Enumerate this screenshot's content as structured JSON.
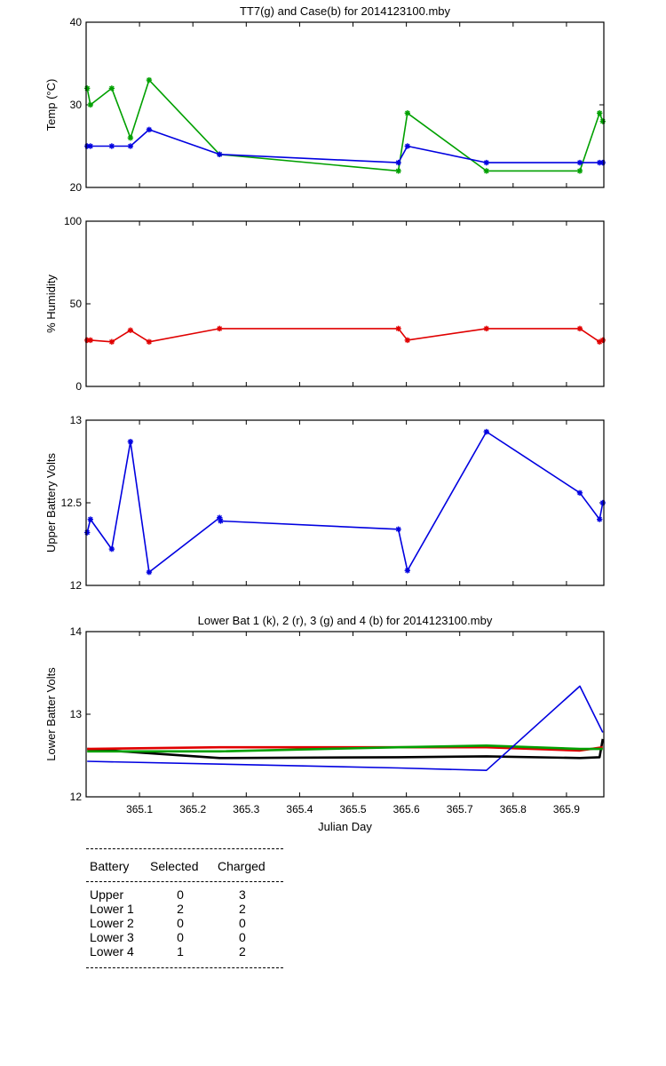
{
  "chart_data": [
    {
      "type": "line",
      "title": "TT7(g) and Case(b) for 2014123100.mby",
      "xlabel": "",
      "ylabel": "Temp  (°C)",
      "xlim": [
        365.0,
        365.97
      ],
      "ylim": [
        20,
        40
      ],
      "yticks": [
        "20",
        "30",
        "40"
      ],
      "xticks": [],
      "grid": false,
      "series": [
        {
          "color": "#00a000",
          "marker": "*",
          "x": [
            365.002,
            365.008,
            365.048,
            365.083,
            365.118,
            365.25,
            365.585,
            365.602,
            365.75,
            365.925,
            365.962,
            365.968
          ],
          "y": [
            32,
            30,
            32,
            26,
            33,
            24,
            22,
            29,
            22,
            22,
            29,
            28
          ]
        },
        {
          "color": "#0000e0",
          "marker": "*",
          "x": [
            365.002,
            365.008,
            365.048,
            365.083,
            365.118,
            365.25,
            365.585,
            365.602,
            365.75,
            365.925,
            365.962,
            365.968
          ],
          "y": [
            25,
            25,
            25,
            25,
            27,
            24,
            23,
            25,
            23,
            23,
            23,
            23
          ]
        }
      ]
    },
    {
      "type": "line",
      "title": "",
      "xlabel": "",
      "ylabel": "% Humidity",
      "xlim": [
        365.0,
        365.97
      ],
      "ylim": [
        0,
        100
      ],
      "yticks": [
        "0",
        "50",
        "100"
      ],
      "xticks": [],
      "grid": false,
      "series": [
        {
          "color": "#e00000",
          "marker": "*",
          "x": [
            365.002,
            365.008,
            365.048,
            365.083,
            365.118,
            365.25,
            365.585,
            365.602,
            365.75,
            365.925,
            365.962,
            365.968
          ],
          "y": [
            28,
            28,
            27,
            34,
            27,
            35,
            35,
            28,
            35,
            35,
            27,
            28
          ]
        }
      ]
    },
    {
      "type": "line",
      "title": "",
      "xlabel": "",
      "ylabel": "Upper Battery Volts",
      "xlim": [
        365.0,
        365.97
      ],
      "ylim": [
        12,
        13
      ],
      "yticks": [
        "12",
        "12.5",
        "13"
      ],
      "xticks": [],
      "grid": false,
      "series": [
        {
          "color": "#0000e0",
          "marker": "*",
          "x": [
            365.002,
            365.008,
            365.048,
            365.083,
            365.118,
            365.25,
            365.252,
            365.585,
            365.602,
            365.75,
            365.925,
            365.962,
            365.968
          ],
          "y": [
            12.32,
            12.4,
            12.22,
            12.87,
            12.08,
            12.41,
            12.39,
            12.34,
            12.09,
            12.93,
            12.56,
            12.4,
            12.5
          ]
        }
      ]
    },
    {
      "type": "line",
      "title": "Lower Bat 1 (k), 2 (r), 3 (g) and 4 (b) for 2014123100.mby",
      "xlabel": "Julian Day",
      "ylabel": "Lower Batter Volts",
      "xlim": [
        365.0,
        365.97
      ],
      "ylim": [
        12,
        14
      ],
      "yticks": [
        "12",
        "13",
        "14"
      ],
      "xticks": [
        "365.1",
        "365.2",
        "365.3",
        "365.4",
        "365.5",
        "365.6",
        "365.7",
        "365.8",
        "365.9"
      ],
      "grid": false,
      "series": [
        {
          "color": "#000000",
          "marker": "",
          "x": [
            365.002,
            365.25,
            365.585,
            365.75,
            365.925,
            365.962,
            365.968
          ],
          "y": [
            12.58,
            12.47,
            12.48,
            12.49,
            12.47,
            12.48,
            12.7
          ]
        },
        {
          "color": "#e00000",
          "marker": "",
          "x": [
            365.002,
            365.25,
            365.585,
            365.75,
            365.925,
            365.968
          ],
          "y": [
            12.58,
            12.6,
            12.6,
            12.6,
            12.56,
            12.6
          ]
        },
        {
          "color": "#00a000",
          "marker": "",
          "x": [
            365.002,
            365.25,
            365.585,
            365.75,
            365.925,
            365.968
          ],
          "y": [
            12.55,
            12.55,
            12.6,
            12.62,
            12.58,
            12.58
          ]
        },
        {
          "color": "#0000e0",
          "marker": "",
          "x": [
            365.002,
            365.585,
            365.75,
            365.925,
            365.968
          ],
          "y": [
            12.43,
            12.35,
            12.32,
            13.34,
            12.78
          ]
        }
      ]
    }
  ],
  "battery_table": {
    "headers": [
      "Battery",
      "Selected",
      "Charged"
    ],
    "rows": [
      {
        "name": "Upper",
        "selected": "0",
        "charged": "3"
      },
      {
        "name": "Lower 1",
        "selected": "2",
        "charged": "2"
      },
      {
        "name": "Lower 2",
        "selected": "0",
        "charged": "0"
      },
      {
        "name": "Lower 3",
        "selected": "0",
        "charged": "0"
      },
      {
        "name": "Lower 4",
        "selected": "1",
        "charged": "2"
      }
    ]
  }
}
